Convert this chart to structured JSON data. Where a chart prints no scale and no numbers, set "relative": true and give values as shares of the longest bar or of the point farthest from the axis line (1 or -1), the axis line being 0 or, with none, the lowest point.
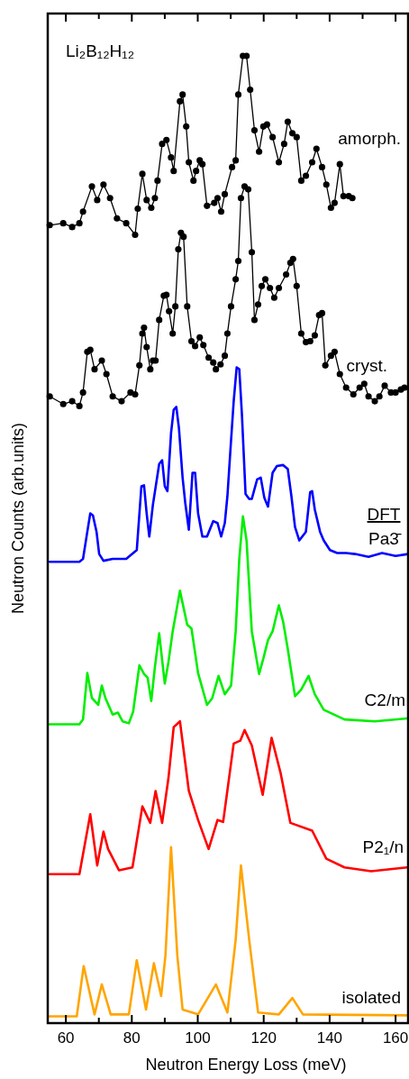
{
  "chart_data": {
    "type": "line",
    "relative": true,
    "xlabel": "Neutron Energy Loss (meV)",
    "ylabel": "Neutron Counts (arb.units)",
    "annotations": [
      "Li₂B₁₂H₁₂",
      "DFT"
    ],
    "xlim": [
      54.5,
      163.8
    ],
    "xticks": [
      60,
      {
        "value": 70,
        "label": null
      },
      80,
      {
        "value": 90,
        "label": null
      },
      100,
      {
        "value": 110,
        "label": null
      },
      120,
      {
        "value": 130,
        "label": null
      },
      140,
      {
        "value": 150,
        "label": null
      },
      160
    ],
    "grid": false,
    "line_style": "solid",
    "marker": "circle",
    "series": [
      {
        "name": "amorph.",
        "color": "#000000",
        "x": [
          55.1,
          59.2,
          61.9,
          64.1,
          65.2,
          67.9,
          69.5,
          71.4,
          73.4,
          75.5,
          78.3,
          81.0,
          81.8,
          83.2,
          84.5,
          85.9,
          87.0,
          87.8,
          89.2,
          90.5,
          91.9,
          92.7,
          94.6,
          95.4,
          96.5,
          97.3,
          98.7,
          99.5,
          100.6,
          101.4,
          102.8,
          105.0,
          106.0,
          107.1,
          108.2,
          110.4,
          111.5,
          112.3,
          113.7,
          114.8,
          115.9,
          117.2,
          118.6,
          119.9,
          121.0,
          122.7,
          124.6,
          126.2,
          127.3,
          128.7,
          130.0,
          131.4,
          132.8,
          134.7,
          136.0,
          137.7,
          139.0,
          140.4,
          141.5,
          143.1,
          144.2,
          145.8,
          146.9
        ],
        "values": [
          0.825,
          0.827,
          0.823,
          0.827,
          0.839,
          0.865,
          0.851,
          0.867,
          0.853,
          0.832,
          0.827,
          0.815,
          0.842,
          0.878,
          0.851,
          0.843,
          0.853,
          0.871,
          0.909,
          0.913,
          0.895,
          0.881,
          0.953,
          0.96,
          0.927,
          0.89,
          0.871,
          0.881,
          0.892,
          0.888,
          0.845,
          0.848,
          0.853,
          0.839,
          0.857,
          0.885,
          0.892,
          0.96,
          1,
          1,
          0.965,
          0.923,
          0.901,
          0.927,
          0.929,
          0.916,
          0.89,
          0.909,
          0.932,
          0.92,
          0.916,
          0.871,
          0.876,
          0.89,
          0.904,
          0.885,
          0.867,
          0.843,
          0.848,
          0.888,
          0.855,
          0.855,
          0.853
        ]
      },
      {
        "name": "cryst.",
        "color": "#000000",
        "x": [
          55.1,
          59.2,
          61.9,
          64.1,
          65.2,
          66.5,
          67.4,
          68.7,
          70.9,
          72.3,
          74.2,
          76.9,
          79.6,
          81.0,
          82.3,
          83.2,
          83.7,
          84.5,
          85.6,
          86.4,
          87.2,
          88.3,
          89.7,
          90.5,
          91.3,
          92.4,
          93.2,
          94.1,
          94.9,
          95.7,
          96.8,
          98.1,
          99.2,
          100.6,
          101.7,
          103.3,
          104.7,
          105.5,
          106.9,
          108.2,
          109.0,
          110.1,
          111.5,
          112.3,
          113.1,
          114.2,
          115.3,
          116.4,
          117.2,
          118.3,
          119.4,
          120.5,
          121.9,
          123.2,
          124.6,
          126.8,
          128.1,
          128.9,
          130.0,
          131.4,
          132.8,
          134.1,
          135.5,
          136.8,
          137.7,
          138.7,
          140.4,
          141.5,
          143.1,
          145.0,
          147.2,
          149.1,
          150.5,
          151.8,
          153.7,
          155.1,
          156.7,
          158.6,
          160.0,
          161.6,
          162.7
        ],
        "values": [
          0.648,
          0.64,
          0.643,
          0.638,
          0.652,
          0.694,
          0.696,
          0.676,
          0.685,
          0.671,
          0.648,
          0.643,
          0.652,
          0.65,
          0.68,
          0.713,
          0.719,
          0.699,
          0.676,
          0.685,
          0.685,
          0.727,
          0.752,
          0.753,
          0.736,
          0.713,
          0.741,
          0.8,
          0.817,
          0.813,
          0.741,
          0.705,
          0.7,
          0.709,
          0.701,
          0.688,
          0.683,
          0.676,
          0.681,
          0.69,
          0.713,
          0.741,
          0.769,
          0.788,
          0.853,
          0.865,
          0.862,
          0.797,
          0.727,
          0.743,
          0.762,
          0.769,
          0.76,
          0.75,
          0.76,
          0.774,
          0.786,
          0.79,
          0.762,
          0.713,
          0.704,
          0.705,
          0.711,
          0.732,
          0.734,
          0.68,
          0.69,
          0.694,
          0.671,
          0.657,
          0.65,
          0.657,
          0.661,
          0.648,
          0.643,
          0.648,
          0.659,
          0.652,
          0.652,
          0.655,
          0.657
        ]
      },
      {
        "name": "Pa3̄",
        "color": "#0000ff",
        "marker": "none",
        "x": [
          55.1,
          64.1,
          65.2,
          66.5,
          67.4,
          68.2,
          69.3,
          70.1,
          71.4,
          74.2,
          78.3,
          81.5,
          82.9,
          83.7,
          84.5,
          85.3,
          86.4,
          88.3,
          89.2,
          90.0,
          90.8,
          91.9,
          92.7,
          93.5,
          94.3,
          95.4,
          96.2,
          97.3,
          98.4,
          99.2,
          100.1,
          101.4,
          102.8,
          104.7,
          106.0,
          107.1,
          108.2,
          109.0,
          109.9,
          110.9,
          111.8,
          112.6,
          113.4,
          114.5,
          115.6,
          116.4,
          118.0,
          119.1,
          120.2,
          121.3,
          122.7,
          124.0,
          125.9,
          127.3,
          128.4,
          129.5,
          130.8,
          132.8,
          134.1,
          134.7,
          135.5,
          137.1,
          138.2,
          140.1,
          142.3,
          145.0,
          147.7,
          151.8,
          155.9,
          160.0,
          163.8
        ],
        "values": [
          0.477,
          0.477,
          0.48,
          0.508,
          0.527,
          0.525,
          0.508,
          0.485,
          0.478,
          0.48,
          0.48,
          0.489,
          0.555,
          0.556,
          0.527,
          0.503,
          0.536,
          0.578,
          0.582,
          0.555,
          0.55,
          0.61,
          0.634,
          0.637,
          0.615,
          0.564,
          0.538,
          0.51,
          0.569,
          0.569,
          0.527,
          0.503,
          0.503,
          0.519,
          0.517,
          0.503,
          0.517,
          0.545,
          0.592,
          0.643,
          0.678,
          0.676,
          0.629,
          0.547,
          0.542,
          0.542,
          0.562,
          0.564,
          0.543,
          0.534,
          0.569,
          0.576,
          0.577,
          0.573,
          0.545,
          0.513,
          0.499,
          0.508,
          0.549,
          0.55,
          0.531,
          0.508,
          0.499,
          0.489,
          0.486,
          0.486,
          0.485,
          0.482,
          0.486,
          0.483,
          0.485
        ]
      },
      {
        "name": "C2/m",
        "color": "#00ee00",
        "marker": "none",
        "x": [
          55.1,
          64.1,
          65.2,
          66.5,
          67.9,
          69.8,
          70.9,
          72.0,
          74.2,
          75.8,
          77.2,
          79.1,
          80.4,
          82.3,
          83.7,
          84.8,
          85.9,
          87.0,
          88.3,
          90.0,
          91.1,
          92.4,
          94.6,
          96.8,
          98.1,
          100.1,
          102.8,
          104.4,
          106.3,
          108.2,
          110.1,
          111.5,
          112.6,
          113.7,
          114.8,
          116.4,
          118.6,
          119.9,
          121.3,
          122.7,
          124.6,
          125.9,
          127.3,
          129.5,
          131.4,
          133.6,
          135.5,
          138.2,
          144.5,
          153.7,
          163.5
        ],
        "values": [
          0.309,
          0.309,
          0.314,
          0.362,
          0.336,
          0.329,
          0.349,
          0.336,
          0.319,
          0.321,
          0.312,
          0.31,
          0.322,
          0.37,
          0.361,
          0.357,
          0.333,
          0.368,
          0.403,
          0.351,
          0.373,
          0.405,
          0.447,
          0.412,
          0.408,
          0.362,
          0.329,
          0.336,
          0.359,
          0.34,
          0.349,
          0.405,
          0.48,
          0.524,
          0.499,
          0.405,
          0.361,
          0.377,
          0.396,
          0.405,
          0.432,
          0.415,
          0.387,
          0.338,
          0.345,
          0.359,
          0.34,
          0.324,
          0.314,
          0.312,
          0.315
        ]
      },
      {
        "name": "P2₁/n",
        "color": "#ff0000",
        "marker": "none",
        "x": [
          55.1,
          64.1,
          67.4,
          69.5,
          71.4,
          72.8,
          76.1,
          80.2,
          83.2,
          85.6,
          87.2,
          89.2,
          91.1,
          92.7,
          94.6,
          97.3,
          100.1,
          103.3,
          106.0,
          107.7,
          110.9,
          112.9,
          114.2,
          116.4,
          119.7,
          122.4,
          125.1,
          128.1,
          134.7,
          139.0,
          144.5,
          152.6,
          163.5
        ],
        "values": [
          0.154,
          0.154,
          0.216,
          0.163,
          0.198,
          0.18,
          0.158,
          0.161,
          0.224,
          0.207,
          0.24,
          0.207,
          0.253,
          0.306,
          0.312,
          0.24,
          0.21,
          0.18,
          0.21,
          0.208,
          0.289,
          0.292,
          0.303,
          0.287,
          0.236,
          0.295,
          0.259,
          0.207,
          0.199,
          0.17,
          0.161,
          0.157,
          0.161
        ]
      },
      {
        "name": "isolated",
        "color": "#ffa500",
        "marker": "none",
        "x": [
          55.1,
          63.3,
          65.4,
          68.7,
          70.9,
          73.6,
          79.1,
          81.5,
          84.3,
          86.7,
          88.9,
          90.2,
          91.9,
          93.8,
          95.4,
          100.1,
          105.5,
          109.0,
          111.5,
          113.1,
          115.6,
          118.3,
          124.6,
          128.7,
          131.9,
          163.5
        ],
        "values": [
          0.007,
          0.007,
          0.059,
          0.009,
          0.04,
          0.009,
          0.009,
          0.065,
          0.014,
          0.062,
          0.028,
          0.07,
          0.182,
          0.07,
          0.014,
          0.009,
          0.04,
          0.011,
          0.086,
          0.163,
          0.086,
          0.011,
          0.009,
          0.026,
          0.009,
          0.008
        ]
      }
    ]
  }
}
